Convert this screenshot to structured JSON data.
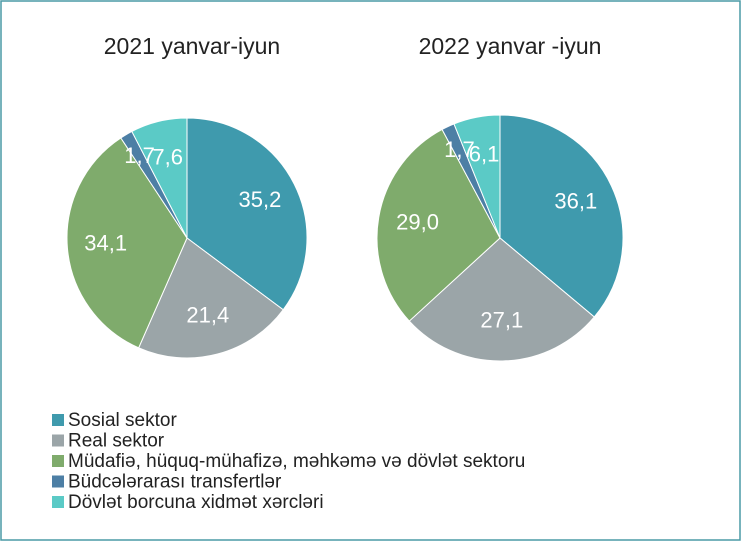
{
  "chart_data": [
    {
      "type": "pie",
      "title": "2021 yanvar-iyun",
      "values": [
        35.2,
        21.4,
        34.1,
        1.7,
        7.6
      ],
      "value_labels": [
        "35,2",
        "21,4",
        "34,1",
        "1,7",
        "7,6"
      ]
    },
    {
      "type": "pie",
      "title": "2022 yanvar -iyun",
      "values": [
        36.1,
        27.1,
        29.0,
        1.7,
        6.1
      ],
      "value_labels": [
        "36,1",
        "27,1",
        "29,0",
        "1,7",
        "6,1"
      ]
    }
  ],
  "legend": {
    "labels": [
      "Sosial sektor",
      "Real sektor",
      "Müdafiə, hüquq-mühafizə, məhkəmə və dövlət sektoru",
      "Büdcələrarası transfertlər",
      "Dövlət borcuna xidmət xərcləri"
    ],
    "colors": [
      "#3f9aad",
      "#9ba5a8",
      "#7fab6c",
      "#4d7fa5",
      "#5bcac6"
    ]
  }
}
